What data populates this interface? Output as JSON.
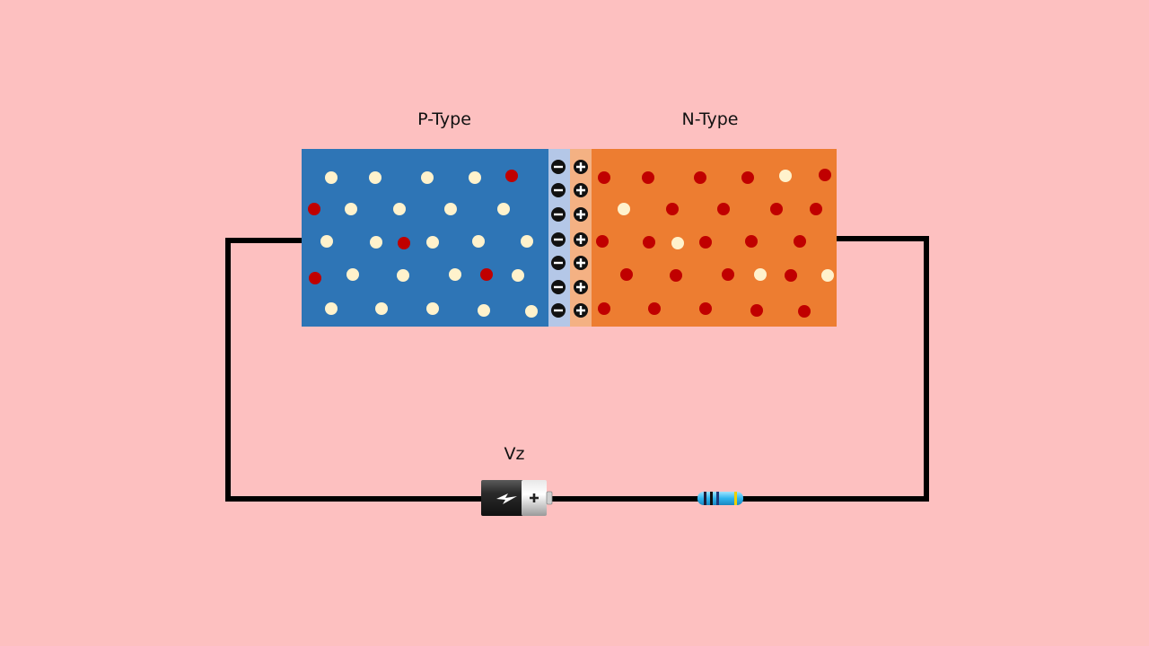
{
  "labels": {
    "p_type": "P-Type",
    "n_type": "N-Type",
    "source": "Vz"
  },
  "colors": {
    "background": "#FDC0C0",
    "p_region": "#2E75B6",
    "n_region": "#ED7D31",
    "depletion_p": "#B4C7E7",
    "depletion_n": "#F4B183",
    "hole": "#FFF2CC",
    "electron": "#C00000",
    "wire": "#000000"
  },
  "icons": {
    "negative_ion": "minus-circle-icon",
    "positive_ion": "plus-circle-icon",
    "battery": "battery-icon",
    "resistor": "resistor-icon"
  },
  "depletion": {
    "negative_ions": 7,
    "positive_ions": 7
  }
}
